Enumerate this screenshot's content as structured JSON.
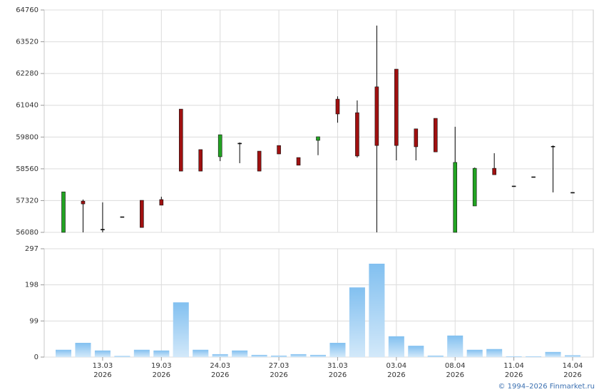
{
  "chart_data": [
    {
      "type": "candlestick",
      "open": [
        56080,
        57300,
        56200,
        56690,
        57330,
        57360,
        60890,
        59310,
        59030,
        59560,
        59250,
        59470,
        59000,
        59670,
        61280,
        60750,
        61760,
        62450,
        60120,
        60530,
        56080,
        57110,
        58580,
        57890,
        58250,
        59440,
        57640
      ],
      "high": [
        57660,
        57360,
        57250,
        56690,
        57330,
        57470,
        60890,
        59310,
        59890,
        59590,
        59250,
        59470,
        59000,
        59810,
        61390,
        61230,
        64150,
        62450,
        60120,
        60530,
        60200,
        58610,
        59170,
        57890,
        58250,
        59470,
        57640
      ],
      "low": [
        56080,
        56080,
        56080,
        56690,
        56270,
        57140,
        58470,
        58470,
        58860,
        58780,
        58470,
        59140,
        58700,
        59090,
        60360,
        59000,
        56080,
        58890,
        58890,
        59220,
        56080,
        57110,
        58330,
        57890,
        58250,
        57640,
        57640
      ],
      "close": [
        57660,
        57190,
        56200,
        56690,
        56270,
        57140,
        58470,
        58470,
        59890,
        59560,
        58470,
        59140,
        58700,
        59810,
        60700,
        59060,
        59470,
        59470,
        59420,
        59220,
        58810,
        58580,
        58330,
        57890,
        58250,
        59440,
        57640
      ],
      "up_color": "#22a322",
      "down_color": "#a01010",
      "ylim": [
        56080,
        64760
      ],
      "yticks": [
        56080,
        57320,
        58560,
        59800,
        61040,
        62280,
        63520,
        64760
      ],
      "grid": true
    },
    {
      "type": "bar",
      "categories": [
        null,
        null,
        "13.03\n2026",
        null,
        null,
        "19.03\n2026",
        null,
        null,
        "24.03\n2026",
        null,
        null,
        "27.03\n2026",
        null,
        null,
        "31.03\n2026",
        null,
        null,
        "03.04\n2026",
        null,
        null,
        "08.04\n2026",
        null,
        null,
        "11.04\n2026",
        null,
        null,
        "14.04\n2026"
      ],
      "values": [
        20,
        39,
        18,
        3,
        20,
        18,
        150,
        20,
        8,
        18,
        6,
        4,
        8,
        6,
        39,
        191,
        256,
        57,
        31,
        4,
        59,
        20,
        22,
        2,
        2,
        14,
        5
      ],
      "color": "#82c0f0",
      "ylim": [
        0,
        297
      ],
      "yticks": [
        0,
        99,
        198,
        297
      ],
      "grid": true
    }
  ],
  "footer": "© 1994–2026 Finmarket.ru"
}
